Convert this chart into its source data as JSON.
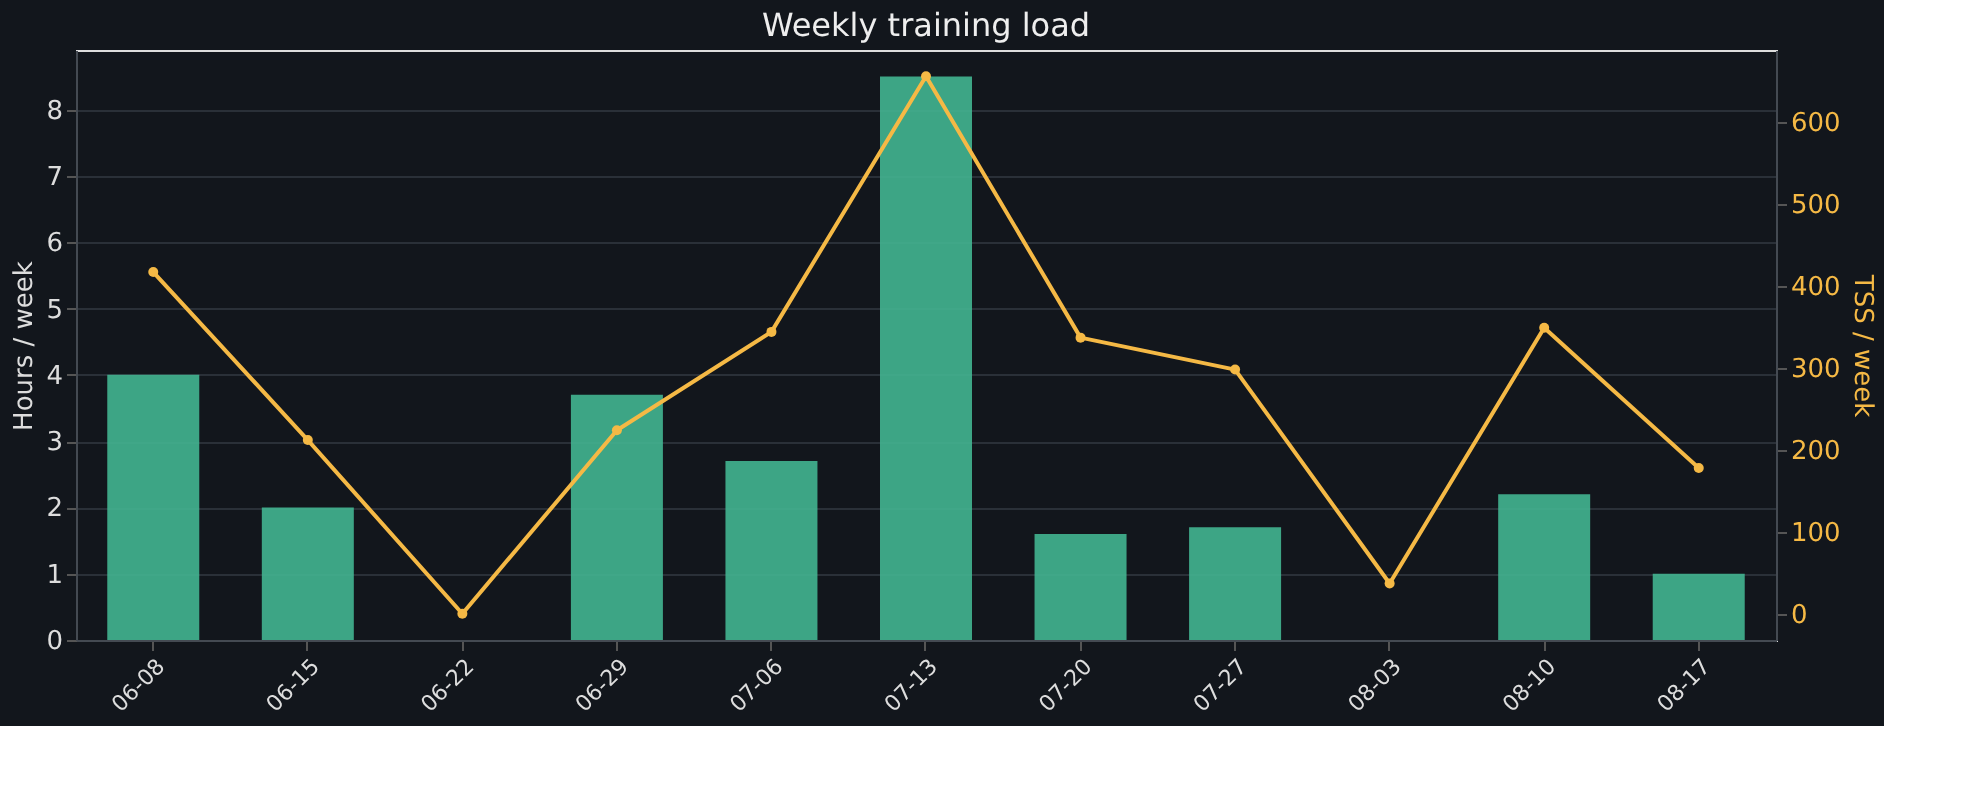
{
  "chart_data": {
    "type": "bar",
    "title": "Weekly training load",
    "ylabel": "Hours / week",
    "y2label": "TSS / week",
    "categories": [
      "06-08",
      "06-15",
      "06-22",
      "06-29",
      "07-06",
      "07-13",
      "07-20",
      "07-27",
      "08-03",
      "08-10",
      "08-17"
    ],
    "series": [
      {
        "color": "#43b591",
        "values": [
          4.0,
          2.0,
          0,
          3.7,
          2.7,
          8.5,
          1.6,
          1.7,
          0,
          2.2,
          1.0
        ]
      },
      {
        "type": "line",
        "axis": "y2",
        "color": "#f5b945",
        "marker": "circle",
        "values": [
          417,
          212,
          0,
          224,
          344,
          656,
          337,
          298,
          37,
          349,
          178
        ]
      }
    ],
    "ylim": [
      0,
      8.9
    ],
    "yticks": [
      0,
      1,
      2,
      3,
      4,
      5,
      6,
      7,
      8
    ],
    "y2lim": [
      -32,
      688
    ],
    "y2ticks": [
      0,
      100,
      200,
      300,
      400,
      500,
      600
    ],
    "grid": "y"
  }
}
